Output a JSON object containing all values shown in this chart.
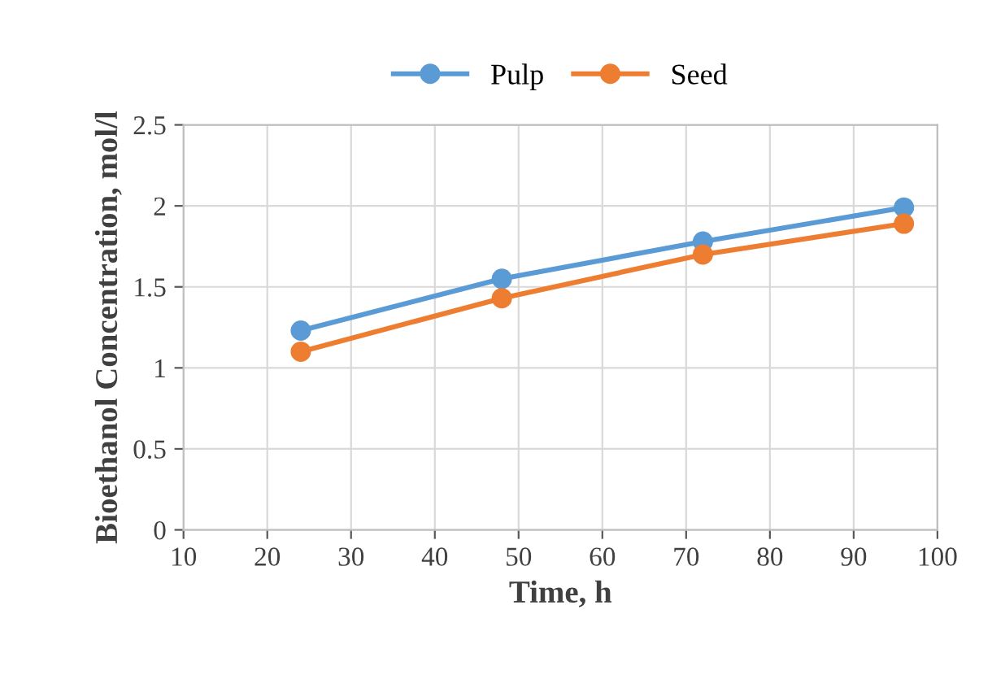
{
  "chart_data": {
    "type": "line",
    "xlabel": "Time, h",
    "ylabel": "Bioethanol Concentration, mol/l",
    "x": [
      24,
      48,
      72,
      96
    ],
    "series": [
      {
        "name": "Pulp",
        "color": "#5b9bd5",
        "values": [
          1.23,
          1.55,
          1.78,
          1.99
        ]
      },
      {
        "name": "Seed",
        "color": "#ed7d31",
        "values": [
          1.1,
          1.43,
          1.7,
          1.89
        ]
      }
    ],
    "xlim": [
      10,
      100
    ],
    "xticks": [
      10,
      20,
      30,
      40,
      50,
      60,
      70,
      80,
      90,
      100
    ],
    "ylim": [
      0,
      2.5
    ],
    "yticks": [
      0,
      {
        "value": 0.5,
        "label": "0.5"
      },
      1,
      {
        "value": 1.5,
        "label": "1.5"
      },
      2,
      {
        "value": 2.5,
        "label": "2.5"
      }
    ],
    "grid": true,
    "legend": "top",
    "marker": "circle",
    "line_style": "solid"
  }
}
